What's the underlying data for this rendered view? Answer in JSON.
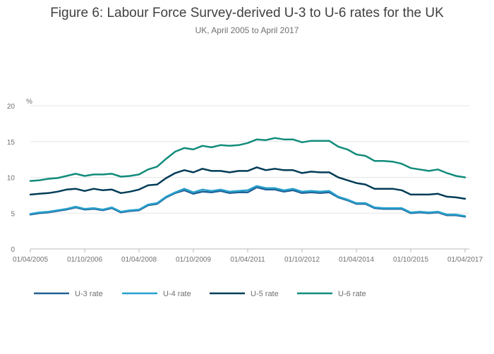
{
  "title": "Figure 6: Labour Force Survey-derived U-3 to U-6 rates for the UK",
  "subtitle": "UK, April 2005 to April 2017",
  "chart_data": {
    "type": "line",
    "title": "Figure 6: Labour Force Survey-derived U-3 to U-6 rates for the UK",
    "subtitle": "UK, April 2005 to April 2017",
    "ylabel": "%",
    "xlabel": "",
    "ylim": [
      0,
      20
    ],
    "yticks": [
      0,
      5,
      10,
      15,
      20
    ],
    "xlim": [
      0,
      48
    ],
    "xticks": [
      {
        "index": 0,
        "label": "01/04/2005"
      },
      {
        "index": 6,
        "label": "01/10/2006"
      },
      {
        "index": 12,
        "label": "01/04/2008"
      },
      {
        "index": 18,
        "label": "01/10/2009"
      },
      {
        "index": 24,
        "label": "01/04/2011"
      },
      {
        "index": 30,
        "label": "01/10/2012"
      },
      {
        "index": 36,
        "label": "01/04/2014"
      },
      {
        "index": 42,
        "label": "01/10/2015"
      },
      {
        "index": 48,
        "label": "01/04/2017"
      }
    ],
    "x_period": "quarterly, 01/04/2005 to 01/04/2017",
    "grid": true,
    "legend_position": "bottom-left",
    "series": [
      {
        "name": "U-3 rate",
        "color": "#206095",
        "values": [
          4.8,
          5.0,
          5.1,
          5.3,
          5.5,
          5.8,
          5.5,
          5.6,
          5.4,
          5.7,
          5.1,
          5.3,
          5.4,
          6.1,
          6.3,
          7.2,
          7.8,
          8.2,
          7.7,
          8.0,
          7.9,
          8.1,
          7.8,
          7.9,
          7.9,
          8.6,
          8.3,
          8.3,
          8.0,
          8.2,
          7.8,
          7.9,
          7.8,
          7.9,
          7.2,
          6.8,
          6.3,
          6.3,
          5.7,
          5.6,
          5.6,
          5.6,
          5.0,
          5.1,
          5.0,
          5.1,
          4.7,
          4.7,
          4.5
        ]
      },
      {
        "name": "U-4 rate",
        "color": "#27a0cc",
        "values": [
          4.9,
          5.1,
          5.2,
          5.4,
          5.6,
          5.9,
          5.6,
          5.7,
          5.5,
          5.8,
          5.2,
          5.4,
          5.5,
          6.2,
          6.4,
          7.3,
          7.9,
          8.4,
          7.9,
          8.3,
          8.1,
          8.3,
          8.0,
          8.1,
          8.2,
          8.8,
          8.5,
          8.5,
          8.2,
          8.4,
          8.0,
          8.1,
          8.0,
          8.1,
          7.3,
          6.9,
          6.4,
          6.4,
          5.8,
          5.7,
          5.7,
          5.7,
          5.1,
          5.2,
          5.1,
          5.2,
          4.8,
          4.8,
          4.6
        ]
      },
      {
        "name": "U-5 rate",
        "color": "#003c57",
        "values": [
          7.6,
          7.7,
          7.8,
          8.0,
          8.3,
          8.4,
          8.1,
          8.4,
          8.2,
          8.3,
          7.8,
          8.0,
          8.3,
          8.9,
          9.0,
          9.9,
          10.6,
          11.0,
          10.7,
          11.2,
          10.9,
          10.9,
          10.7,
          10.9,
          10.9,
          11.4,
          11.0,
          11.2,
          11.0,
          11.0,
          10.6,
          10.8,
          10.7,
          10.7,
          10.0,
          9.6,
          9.2,
          9.0,
          8.4,
          8.4,
          8.4,
          8.2,
          7.6,
          7.6,
          7.6,
          7.7,
          7.3,
          7.2,
          7.0
        ]
      },
      {
        "name": "U-6 rate",
        "color": "#118c7b",
        "values": [
          9.5,
          9.6,
          9.8,
          9.9,
          10.2,
          10.5,
          10.2,
          10.4,
          10.4,
          10.5,
          10.1,
          10.2,
          10.4,
          11.1,
          11.5,
          12.6,
          13.6,
          14.1,
          13.9,
          14.4,
          14.2,
          14.5,
          14.4,
          14.5,
          14.8,
          15.3,
          15.2,
          15.5,
          15.3,
          15.3,
          14.9,
          15.1,
          15.1,
          15.1,
          14.3,
          13.9,
          13.2,
          13.0,
          12.3,
          12.3,
          12.2,
          11.9,
          11.3,
          11.1,
          10.9,
          11.1,
          10.6,
          10.2,
          10.0
        ]
      }
    ]
  }
}
